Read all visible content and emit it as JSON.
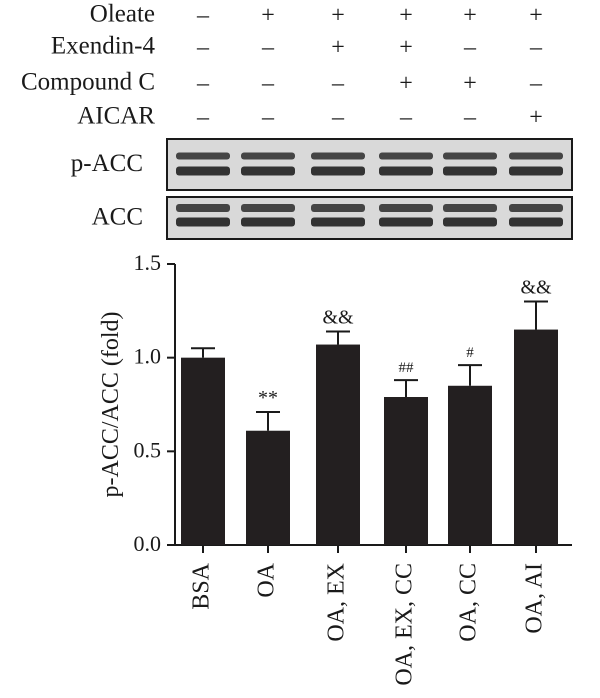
{
  "treatments": {
    "rows": [
      {
        "label": "Oleate",
        "signs": [
          "–",
          "+",
          "+",
          "+",
          "+",
          "+"
        ]
      },
      {
        "label": "Exendin-4",
        "signs": [
          "–",
          "–",
          "+",
          "+",
          "–",
          "–"
        ]
      },
      {
        "label": "Compound C",
        "signs": [
          "–",
          "–",
          "–",
          "+",
          "+",
          "–"
        ]
      },
      {
        "label": "AICAR",
        "signs": [
          "–",
          "–",
          "–",
          "–",
          "–",
          "+"
        ]
      }
    ]
  },
  "blots": [
    {
      "label": "p-ACC"
    },
    {
      "label": "ACC"
    }
  ],
  "colors": {
    "bar": "#231f20",
    "band": "#2a2a2a",
    "blot_bg": "#d9d9d9"
  },
  "chart_data": {
    "type": "bar",
    "categories": [
      "BSA",
      "OA",
      "OA, EX",
      "OA, EX, CC",
      "OA, CC",
      "OA, AI"
    ],
    "values": [
      1.0,
      0.61,
      1.07,
      0.79,
      0.85,
      1.15
    ],
    "errors": [
      0.05,
      0.1,
      0.07,
      0.09,
      0.11,
      0.15
    ],
    "annotations": [
      "",
      "**",
      "&&",
      "##",
      "#",
      "&&"
    ],
    "ylabel": "p-ACC/ACC (fold)",
    "ylim": [
      0,
      1.5
    ],
    "yticks": [
      "0.0",
      "0.5",
      "1.0",
      "1.5"
    ],
    "ytick_values": [
      0,
      0.5,
      1.0,
      1.5
    ]
  }
}
